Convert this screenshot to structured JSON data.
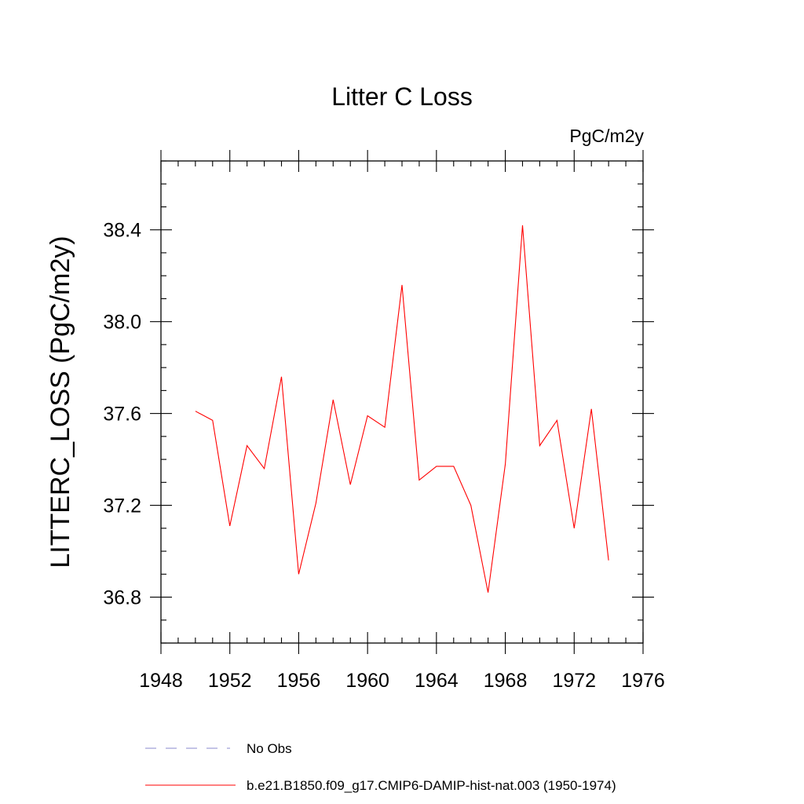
{
  "chart_data": {
    "type": "line",
    "title": "Litter C Loss",
    "units": "PgC/m2y",
    "ylabel": "LITTERC_LOSS  (PgC/m2y)",
    "xlabel": "",
    "xlim": [
      1948,
      1976
    ],
    "ylim": [
      36.6,
      38.7
    ],
    "xticks": [
      "1948",
      "1952",
      "1956",
      "1960",
      "1964",
      "1968",
      "1972",
      "1976"
    ],
    "yticks": [
      "36.8",
      "37.2",
      "37.6",
      "38.0",
      "38.4"
    ],
    "x": [
      1950,
      1951,
      1952,
      1953,
      1954,
      1955,
      1956,
      1957,
      1958,
      1959,
      1960,
      1961,
      1962,
      1963,
      1964,
      1965,
      1966,
      1967,
      1968,
      1969,
      1970,
      1971,
      1972,
      1973,
      1974
    ],
    "series": [
      {
        "name": "b.e21.B1850.f09_g17.CMIP6-DAMIP-hist-nat.003 (1950-1974)",
        "color": "#ff0000",
        "values": [
          37.61,
          37.57,
          37.11,
          37.46,
          37.36,
          37.76,
          36.9,
          37.21,
          37.66,
          37.29,
          37.59,
          37.54,
          38.16,
          37.31,
          37.37,
          37.37,
          37.2,
          36.82,
          37.38,
          38.42,
          37.46,
          37.57,
          37.1,
          37.62,
          36.96
        ]
      }
    ],
    "legend": {
      "placement": "bottom",
      "entries": [
        {
          "label": "No Obs",
          "style": "dashed",
          "color": "#8888cc"
        },
        {
          "label": "b.e21.B1850.f09_g17.CMIP6-DAMIP-hist-nat.003 (1950-1974)",
          "style": "solid",
          "color": "#ff0000"
        }
      ]
    },
    "grid": false
  }
}
